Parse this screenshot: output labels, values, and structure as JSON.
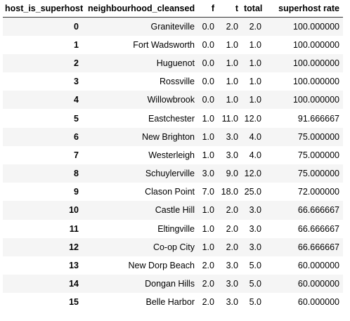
{
  "table": {
    "columns": {
      "index_name": "host_is_superhost",
      "neighbourhood": "neighbourhood_cleansed",
      "f": "f",
      "t": "t",
      "total": "total",
      "rate": "superhost rate"
    },
    "rows": [
      {
        "index": "0",
        "neighbourhood": "Graniteville",
        "f": "0.0",
        "t": "2.0",
        "total": "2.0",
        "rate": "100.000000"
      },
      {
        "index": "1",
        "neighbourhood": "Fort Wadsworth",
        "f": "0.0",
        "t": "1.0",
        "total": "1.0",
        "rate": "100.000000"
      },
      {
        "index": "2",
        "neighbourhood": "Huguenot",
        "f": "0.0",
        "t": "1.0",
        "total": "1.0",
        "rate": "100.000000"
      },
      {
        "index": "3",
        "neighbourhood": "Rossville",
        "f": "0.0",
        "t": "1.0",
        "total": "1.0",
        "rate": "100.000000"
      },
      {
        "index": "4",
        "neighbourhood": "Willowbrook",
        "f": "0.0",
        "t": "1.0",
        "total": "1.0",
        "rate": "100.000000"
      },
      {
        "index": "5",
        "neighbourhood": "Eastchester",
        "f": "1.0",
        "t": "11.0",
        "total": "12.0",
        "rate": "91.666667"
      },
      {
        "index": "6",
        "neighbourhood": "New Brighton",
        "f": "1.0",
        "t": "3.0",
        "total": "4.0",
        "rate": "75.000000"
      },
      {
        "index": "7",
        "neighbourhood": "Westerleigh",
        "f": "1.0",
        "t": "3.0",
        "total": "4.0",
        "rate": "75.000000"
      },
      {
        "index": "8",
        "neighbourhood": "Schuylerville",
        "f": "3.0",
        "t": "9.0",
        "total": "12.0",
        "rate": "75.000000"
      },
      {
        "index": "9",
        "neighbourhood": "Clason Point",
        "f": "7.0",
        "t": "18.0",
        "total": "25.0",
        "rate": "72.000000"
      },
      {
        "index": "10",
        "neighbourhood": "Castle Hill",
        "f": "1.0",
        "t": "2.0",
        "total": "3.0",
        "rate": "66.666667"
      },
      {
        "index": "11",
        "neighbourhood": "Eltingville",
        "f": "1.0",
        "t": "2.0",
        "total": "3.0",
        "rate": "66.666667"
      },
      {
        "index": "12",
        "neighbourhood": "Co-op City",
        "f": "1.0",
        "t": "2.0",
        "total": "3.0",
        "rate": "66.666667"
      },
      {
        "index": "13",
        "neighbourhood": "New Dorp Beach",
        "f": "2.0",
        "t": "3.0",
        "total": "5.0",
        "rate": "60.000000"
      },
      {
        "index": "14",
        "neighbourhood": "Dongan Hills",
        "f": "2.0",
        "t": "3.0",
        "total": "5.0",
        "rate": "60.000000"
      },
      {
        "index": "15",
        "neighbourhood": "Belle Harbor",
        "f": "2.0",
        "t": "3.0",
        "total": "5.0",
        "rate": "60.000000"
      }
    ]
  },
  "colors": {
    "stripe_row": "#f5f5f5",
    "plain_row": "#ffffff",
    "header_rule": "#333333"
  }
}
